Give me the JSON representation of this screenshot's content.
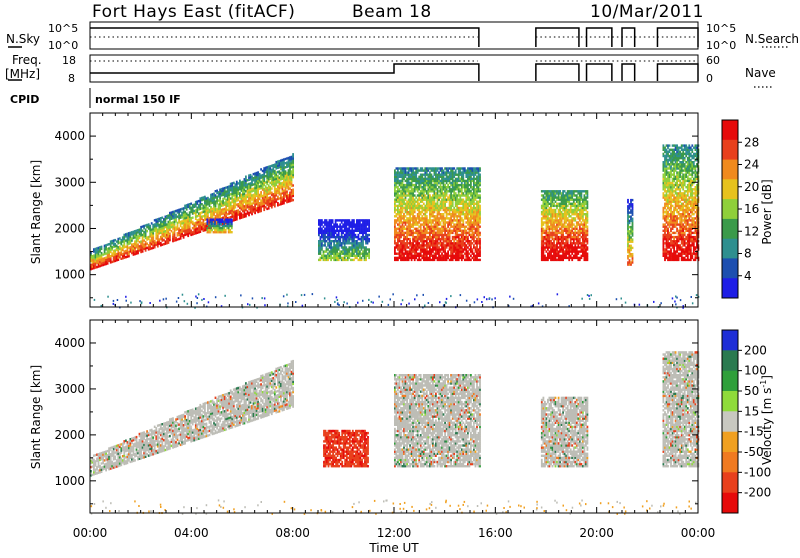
{
  "header": {
    "station": "Fort Hays East (fitACF)",
    "beam": "Beam 18",
    "date": "10/Mar/2011"
  },
  "strip": {
    "nsky_label": "N.Sky",
    "nsearch_label": "N.Search",
    "nsky_ticks": [
      "10^5",
      "10^0"
    ],
    "nsearch_ticks": [
      "10^5",
      "10^0"
    ],
    "freq_label_1": "Freq.",
    "freq_label_2": "[MHz]",
    "freq_ticks": [
      "18",
      "8"
    ],
    "nave_label": "Nave",
    "nave_ticks": [
      "60",
      "0"
    ],
    "cpid_label": "CPID",
    "cpid_value": "normal 150 IF"
  },
  "xaxis": {
    "label": "Time UT",
    "ticks": [
      "00:00",
      "04:00",
      "08:00",
      "12:00",
      "16:00",
      "20:00",
      "00:00"
    ]
  },
  "colors": {
    "power": [
      "#1e1ee6",
      "#1c4fb0",
      "#2e8f8f",
      "#3a9a4a",
      "#8fcf3a",
      "#e6c21e",
      "#f08a1e",
      "#e8401c",
      "#e60a0a"
    ],
    "velocity": [
      "#1e2ed6",
      "#2a7a50",
      "#2f9f3a",
      "#8fdb3a",
      "#c8c8c0",
      "#f0a020",
      "#f07a20",
      "#e8401c",
      "#e60a0a"
    ],
    "ground": "#bdbdb6"
  },
  "chart_data": [
    {
      "type": "heatmap",
      "name": "power",
      "ylabel": "Slant Range [km]",
      "xlabel": "",
      "xlim": [
        0,
        24
      ],
      "ylim": [
        300,
        4500
      ],
      "yticks": [
        "1000",
        "2000",
        "3000",
        "4000"
      ],
      "colorbar": {
        "label": "Power [dB]",
        "ticks": [
          "28",
          "24",
          "20",
          "16",
          "12",
          "8",
          "4"
        ],
        "range": [
          0,
          30
        ]
      },
      "features": [
        {
          "t": [
            0.0,
            8.0
          ],
          "r_start": [
            1100,
            1500
          ],
          "r_end": [
            2600,
            3600
          ],
          "value": 18
        },
        {
          "t": [
            4.6,
            5.6
          ],
          "r": [
            1900,
            2200
          ],
          "value": 10
        },
        {
          "t": [
            9.0,
            11.0
          ],
          "r": [
            1300,
            2200
          ],
          "value": 6
        },
        {
          "t": [
            12.0,
            15.4
          ],
          "r": [
            1300,
            3300
          ],
          "value": 20
        },
        {
          "t": [
            17.8,
            19.6
          ],
          "r": [
            1300,
            2800
          ],
          "value": 22
        },
        {
          "t": [
            21.2,
            21.4
          ],
          "r": [
            1200,
            2600
          ],
          "value": 14
        },
        {
          "t": [
            22.6,
            24.0
          ],
          "r": [
            1300,
            3800
          ],
          "value": 20
        }
      ]
    },
    {
      "type": "heatmap",
      "name": "velocity",
      "ylabel": "Slant Range [km]",
      "xlabel": "Time UT",
      "xlim": [
        0,
        24
      ],
      "ylim": [
        300,
        4500
      ],
      "yticks": [
        "1000",
        "2000",
        "3000",
        "4000"
      ],
      "colorbar": {
        "label": "Velocity [m s^-1]",
        "ticks": [
          "200",
          "100",
          "50",
          "15",
          "-15",
          "-50",
          "-100",
          "-200"
        ],
        "range": [
          -250,
          250
        ]
      },
      "features": [
        {
          "t": [
            0.0,
            8.0
          ],
          "r_start": [
            1100,
            1500
          ],
          "r_end": [
            2600,
            3600
          ],
          "value": 0
        },
        {
          "t": [
            9.2,
            11.0
          ],
          "r": [
            1300,
            2100
          ],
          "value": -180
        },
        {
          "t": [
            12.0,
            15.4
          ],
          "r": [
            1300,
            3300
          ],
          "value": 0
        },
        {
          "t": [
            17.8,
            19.6
          ],
          "r": [
            1300,
            2800
          ],
          "value": 0
        },
        {
          "t": [
            22.6,
            24.0
          ],
          "r": [
            1300,
            3800
          ],
          "value": 0
        }
      ]
    }
  ]
}
